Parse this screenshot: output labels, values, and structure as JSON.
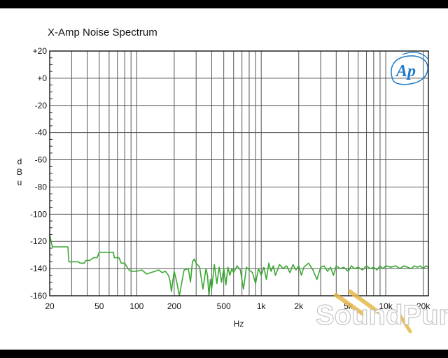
{
  "chart_data": {
    "type": "line",
    "title": "X-Amp Noise Spectrum",
    "xlabel": "Hz",
    "ylabel": "dBu",
    "x_scale": "log",
    "xlim": [
      20,
      22000
    ],
    "ylim": [
      -160,
      20
    ],
    "grid": true,
    "x_ticks": [
      20,
      50,
      100,
      200,
      500,
      1000,
      2000,
      5000,
      10000,
      20000
    ],
    "x_tick_labels": [
      "20",
      "50",
      "100",
      "200",
      "500",
      "1k",
      "2k",
      "5k",
      "10k",
      "20k"
    ],
    "y_ticks": [
      20,
      0,
      -20,
      -40,
      -60,
      -80,
      -100,
      -120,
      -140,
      -160
    ],
    "y_tick_labels": [
      "+20",
      "+0",
      "-20",
      "-40",
      "-60",
      "-80",
      "-100",
      "-120",
      "-140",
      "-160"
    ],
    "series": [
      {
        "color": "#3aa832",
        "x": [
          20,
          20.5,
          21,
          22,
          24,
          25,
          28,
          28.5,
          34,
          35,
          38,
          39,
          42,
          45,
          48,
          50,
          55,
          60,
          65,
          66,
          72,
          75,
          80,
          85,
          90,
          100,
          110,
          120,
          140,
          150,
          160,
          170,
          180,
          185,
          190,
          195,
          200,
          210,
          220,
          240,
          260,
          270,
          280,
          290,
          300,
          320,
          340,
          360,
          370,
          380,
          390,
          400,
          420,
          440,
          460,
          480,
          500,
          520,
          540,
          560,
          580,
          600,
          640,
          680,
          720,
          760,
          800,
          850,
          900,
          950,
          1000,
          1050,
          1100,
          1150,
          1200,
          1250,
          1300,
          1400,
          1500,
          1600,
          1700,
          1800,
          1900,
          2000,
          2100,
          2200,
          2400,
          2600,
          2800,
          3000,
          3200,
          3400,
          3600,
          3800,
          4000,
          4300,
          4600,
          5000,
          5300,
          5600,
          6000,
          6500,
          7000,
          7500,
          8000,
          8500,
          9000,
          9500,
          10000,
          11000,
          12000,
          13000,
          14000,
          15000,
          16000,
          17000,
          18000,
          19000,
          20000,
          21000,
          22000
        ],
        "y": [
          -115,
          -120,
          -124,
          -124,
          -124,
          -124,
          -124,
          -135,
          -135,
          -136,
          -136,
          -134,
          -134,
          -132,
          -132,
          -128,
          -128,
          -128,
          -128,
          -132,
          -132,
          -136,
          -136,
          -140,
          -142,
          -142,
          -141,
          -144,
          -142,
          -141,
          -143,
          -142,
          -145,
          -149,
          -157,
          -149,
          -142,
          -150,
          -162,
          -141,
          -140,
          -150,
          -135,
          -133,
          -136,
          -139,
          -155,
          -140,
          -145,
          -163,
          -148,
          -155,
          -137,
          -151,
          -139,
          -150,
          -140,
          -152,
          -139,
          -145,
          -140,
          -143,
          -138,
          -141,
          -155,
          -139,
          -141,
          -143,
          -151,
          -140,
          -145,
          -139,
          -148,
          -136,
          -142,
          -138,
          -145,
          -137,
          -140,
          -138,
          -143,
          -137,
          -141,
          -138,
          -145,
          -139,
          -136,
          -141,
          -148,
          -139,
          -138,
          -142,
          -139,
          -145,
          -138,
          -140,
          -139,
          -142,
          -138,
          -140,
          -139,
          -141,
          -138,
          -140,
          -139,
          -141,
          -138,
          -140,
          -138,
          -139,
          -138,
          -140,
          -138,
          -139,
          -140,
          -138,
          -139,
          -138,
          -140,
          -138,
          -139
        ]
      }
    ]
  },
  "logo_text": "Ap",
  "watermark_text": "SoundPure"
}
